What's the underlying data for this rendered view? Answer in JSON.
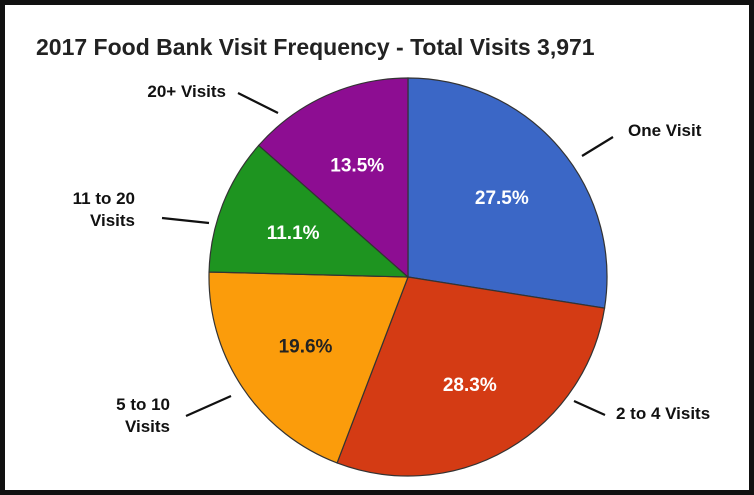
{
  "chart_data": {
    "type": "pie",
    "title": "2017 Food Bank Visit Frequency - Total Visits 3,971",
    "slices": [
      {
        "label": [
          "One Visit"
        ],
        "value": 27.5,
        "value_label": "27.5%",
        "color": "#3b67c6"
      },
      {
        "label": [
          "2 to 4 Visits"
        ],
        "value": 28.3,
        "value_label": "28.3%",
        "color": "#d43b14"
      },
      {
        "label": [
          "5 to 10",
          "Visits"
        ],
        "value": 19.6,
        "value_label": "19.6%",
        "color": "#fb9c0b"
      },
      {
        "label": [
          "11 to 20",
          "Visits"
        ],
        "value": 11.1,
        "value_label": "11.1%",
        "color": "#1e9420"
      },
      {
        "label": [
          "20+ Visits"
        ],
        "value": 13.5,
        "value_label": "13.5%",
        "color": "#8d0d92"
      }
    ],
    "start_angle": "12 o'clock",
    "direction": "clockwise",
    "legend": "none"
  }
}
